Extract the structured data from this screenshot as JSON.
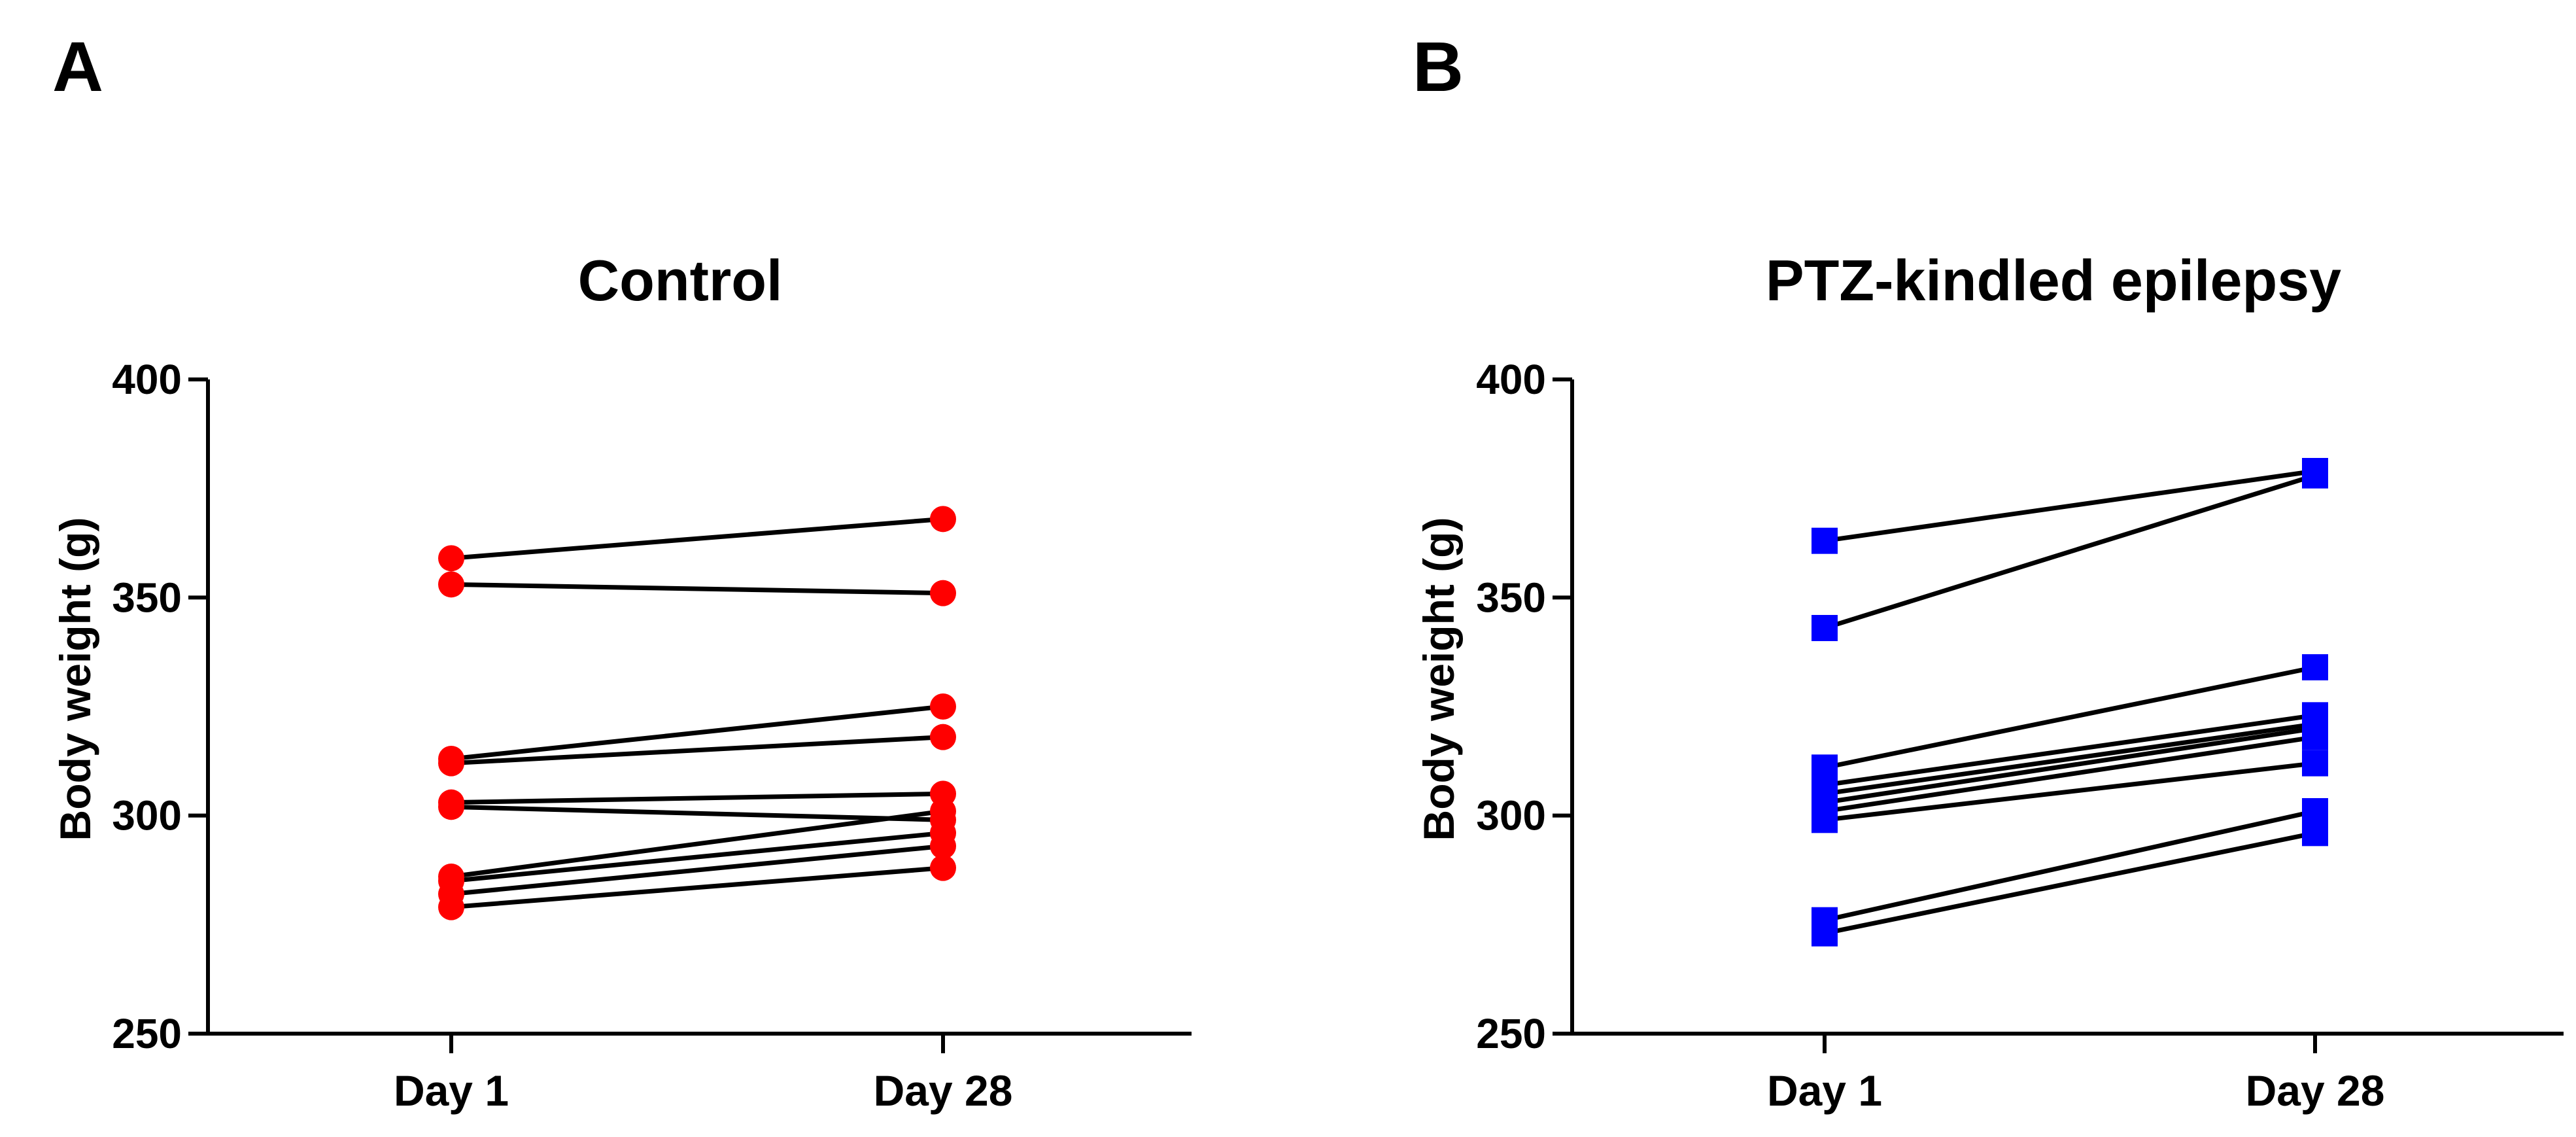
{
  "panels": [
    {
      "letter": "A"
    },
    {
      "letter": "B"
    }
  ],
  "chart_data": [
    {
      "type": "line",
      "title": "Control",
      "xlabel": "",
      "ylabel": "Body weight (g)",
      "categories": [
        "Day 1",
        "Day 28"
      ],
      "ylim": [
        250,
        400
      ],
      "yticks": [
        250,
        300,
        350,
        400
      ],
      "marker": "circle",
      "marker_color": "#ff0000",
      "line_color": "#000000",
      "grid": false,
      "pairs": [
        [
          359,
          368
        ],
        [
          353,
          351
        ],
        [
          313,
          325
        ],
        [
          312,
          318
        ],
        [
          303,
          305
        ],
        [
          302,
          299
        ],
        [
          286,
          301
        ],
        [
          285,
          296
        ],
        [
          282,
          293
        ],
        [
          279,
          288
        ]
      ]
    },
    {
      "type": "line",
      "title": "PTZ-kindled epilepsy",
      "xlabel": "",
      "ylabel": "Body weight (g)",
      "categories": [
        "Day 1",
        "Day 28"
      ],
      "ylim": [
        250,
        400
      ],
      "yticks": [
        250,
        300,
        350,
        400
      ],
      "marker": "square",
      "marker_color": "#0000ff",
      "line_color": "#000000",
      "grid": false,
      "pairs": [
        [
          363,
          379
        ],
        [
          343,
          378
        ],
        [
          311,
          334
        ],
        [
          307,
          323
        ],
        [
          305,
          321
        ],
        [
          303,
          320
        ],
        [
          301,
          318
        ],
        [
          299,
          312
        ],
        [
          276,
          301
        ],
        [
          273,
          296
        ]
      ]
    }
  ]
}
